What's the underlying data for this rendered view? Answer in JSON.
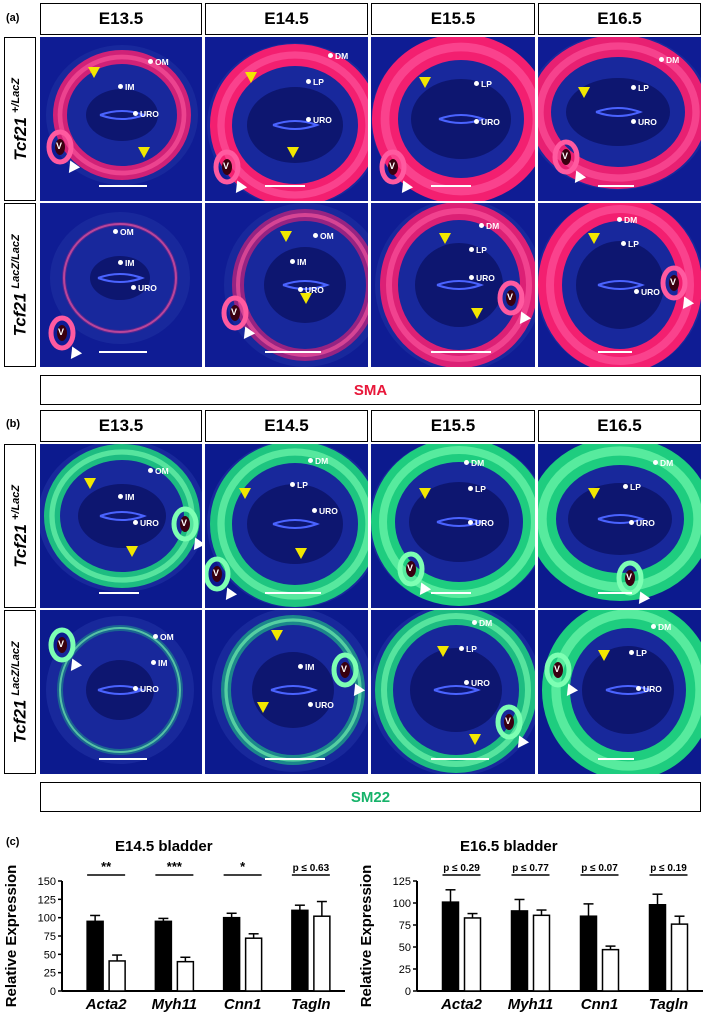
{
  "panel_a_label": "(a)",
  "panel_b_label": "(b)",
  "panel_c_label": "(c)",
  "stages": [
    "E13.5",
    "E14.5",
    "E15.5",
    "E16.5"
  ],
  "genotypes": [
    {
      "name": "Tcf21",
      "sup": "+/LacZ"
    },
    {
      "name": "Tcf21",
      "sup": "LacZ/LacZ"
    }
  ],
  "stain_a": "SMA",
  "stain_b": "SM22",
  "stain_colors": {
    "SMA": "#e8173a",
    "SM22": "#16b36a"
  },
  "tissue_labels": {
    "om": "OM",
    "im": "IM",
    "uro": "URO",
    "dm": "DM",
    "lp": "LP",
    "v": "V"
  },
  "chart_data": [
    {
      "type": "bar",
      "title": "E14.5 bladder",
      "ylabel": "Relative Expression",
      "ylim": [
        0,
        150
      ],
      "yticks": [
        0,
        25,
        50,
        75,
        100,
        125,
        150
      ],
      "categories": [
        "Acta2",
        "Myh11",
        "Cnn1",
        "Tagln"
      ],
      "series": [
        {
          "fill": "#000000",
          "values": [
            95,
            95,
            100,
            110
          ],
          "errors": [
            8,
            4,
            6,
            7
          ]
        },
        {
          "fill": "#ffffff",
          "values": [
            41,
            40,
            72,
            102
          ],
          "errors": [
            8,
            6,
            6,
            20
          ]
        }
      ],
      "significance": [
        "**",
        "***",
        "*",
        "p ≤ 0.63"
      ]
    },
    {
      "type": "bar",
      "title": "E16.5 bladder",
      "ylabel": "Relative Expression",
      "ylim": [
        0,
        125
      ],
      "yticks": [
        0,
        25,
        50,
        75,
        100,
        125
      ],
      "categories": [
        "Acta2",
        "Myh11",
        "Cnn1",
        "Tagln"
      ],
      "series": [
        {
          "fill": "#000000",
          "values": [
            101,
            91,
            85,
            98
          ],
          "errors": [
            14,
            13,
            14,
            12
          ]
        },
        {
          "fill": "#ffffff",
          "values": [
            83,
            86,
            47,
            76
          ],
          "errors": [
            5,
            6,
            4,
            9
          ]
        }
      ],
      "significance": [
        "p ≤ 0.29",
        "p ≤ 0.77",
        "p ≤ 0.07",
        "p ≤ 0.19"
      ]
    }
  ]
}
